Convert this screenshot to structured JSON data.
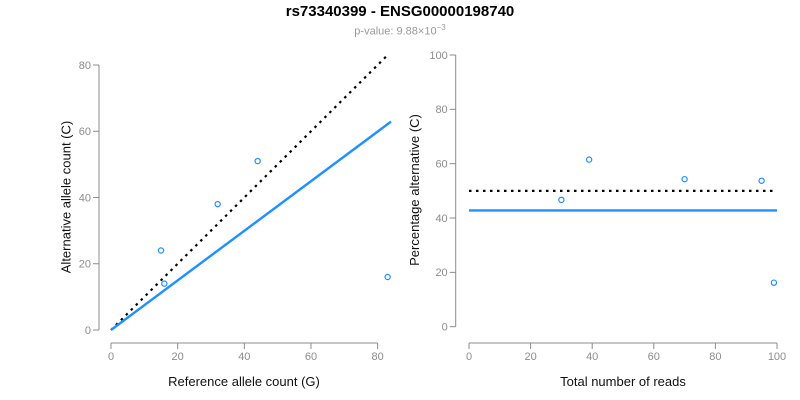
{
  "colors": {
    "accent_blue": "#1E90FF",
    "dotted_line_black": "#000000",
    "axis_gray": "#8c8c8c",
    "subtitle_gray": "#9a9a9a",
    "title_black": "#000000"
  },
  "chart_data": {
    "figure_title": "rs73340399 - ENSG00000198740",
    "subtitle": {
      "prefix": "p-value: 9.88×10",
      "exponent": "−3"
    },
    "plots": [
      {
        "type": "scatter",
        "xlabel": "Reference allele count (G)",
        "ylabel": "Alternative allele count (C)",
        "xlim": [
          0,
          85
        ],
        "ylim": [
          0,
          83
        ],
        "xticks": [
          0,
          20,
          40,
          60,
          80
        ],
        "yticks": [
          0,
          20,
          40,
          60,
          80
        ],
        "grid": false,
        "legend": false,
        "point_color": "#1E90FF",
        "points": [
          [
            15,
            24
          ],
          [
            16,
            14
          ],
          [
            32,
            38
          ],
          [
            44,
            51
          ],
          [
            83,
            16
          ]
        ],
        "lines": [
          {
            "name": "identity-line",
            "style": "dotted",
            "color": "#000000",
            "from": [
              0,
              0
            ],
            "to": [
              83,
              83
            ]
          },
          {
            "name": "regression-line",
            "style": "solid",
            "color": "#1E90FF",
            "from": [
              0,
              0
            ],
            "to": [
              84,
              62.9
            ]
          }
        ]
      },
      {
        "type": "scatter",
        "xlabel": "Total number of reads",
        "ylabel": "Percentage alternative (C)",
        "xlim": [
          0,
          100
        ],
        "ylim": [
          0,
          100
        ],
        "xticks": [
          0,
          20,
          40,
          60,
          80,
          100
        ],
        "yticks": [
          0,
          20,
          40,
          60,
          80,
          100
        ],
        "grid": false,
        "legend": false,
        "point_color": "#1E90FF",
        "points": [
          [
            30,
            46.7
          ],
          [
            39,
            61.5
          ],
          [
            70,
            54.3
          ],
          [
            95,
            53.7
          ],
          [
            99,
            16.2
          ]
        ],
        "lines": [
          {
            "name": "fifty-percent-line",
            "style": "dotted",
            "color": "#000000",
            "from": [
              0,
              50
            ],
            "to": [
              100,
              50
            ]
          },
          {
            "name": "mean-percentage-line",
            "style": "solid",
            "color": "#1E90FF",
            "from": [
              0,
              42.8
            ],
            "to": [
              100,
              42.8
            ]
          }
        ]
      }
    ]
  }
}
